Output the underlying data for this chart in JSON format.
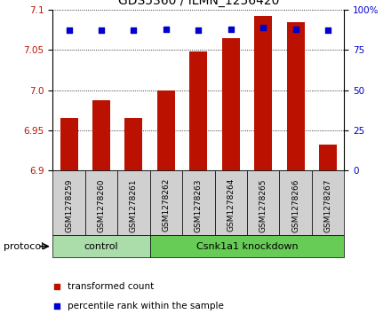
{
  "title": "GDS5360 / ILMN_1256420",
  "samples": [
    "GSM1278259",
    "GSM1278260",
    "GSM1278261",
    "GSM1278262",
    "GSM1278263",
    "GSM1278264",
    "GSM1278265",
    "GSM1278266",
    "GSM1278267"
  ],
  "bar_values": [
    6.965,
    6.988,
    6.965,
    7.0,
    7.048,
    7.065,
    7.092,
    7.085,
    6.932
  ],
  "percentile_values": [
    87,
    87,
    87,
    88,
    87,
    88,
    89,
    88,
    87
  ],
  "ylim_left": [
    6.9,
    7.1
  ],
  "ylim_right": [
    0,
    100
  ],
  "yticks_left": [
    6.9,
    6.95,
    7.0,
    7.05,
    7.1
  ],
  "yticks_right": [
    0,
    25,
    50,
    75,
    100
  ],
  "bar_color": "#bb1100",
  "dot_color": "#0000cc",
  "bar_width": 0.55,
  "groups": [
    {
      "label": "control",
      "indices": [
        0,
        1,
        2
      ],
      "color": "#aaddaa"
    },
    {
      "label": "Csnk1a1 knockdown",
      "indices": [
        3,
        4,
        5,
        6,
        7,
        8
      ],
      "color": "#66cc55"
    }
  ],
  "group_box_color": "#d0d0d0",
  "protocol_label": "protocol",
  "legend_bar_label": "transformed count",
  "legend_dot_label": "percentile rank within the sample",
  "title_fontsize": 10,
  "tick_fontsize": 7.5,
  "label_fontsize": 6.5,
  "group_fontsize": 8
}
